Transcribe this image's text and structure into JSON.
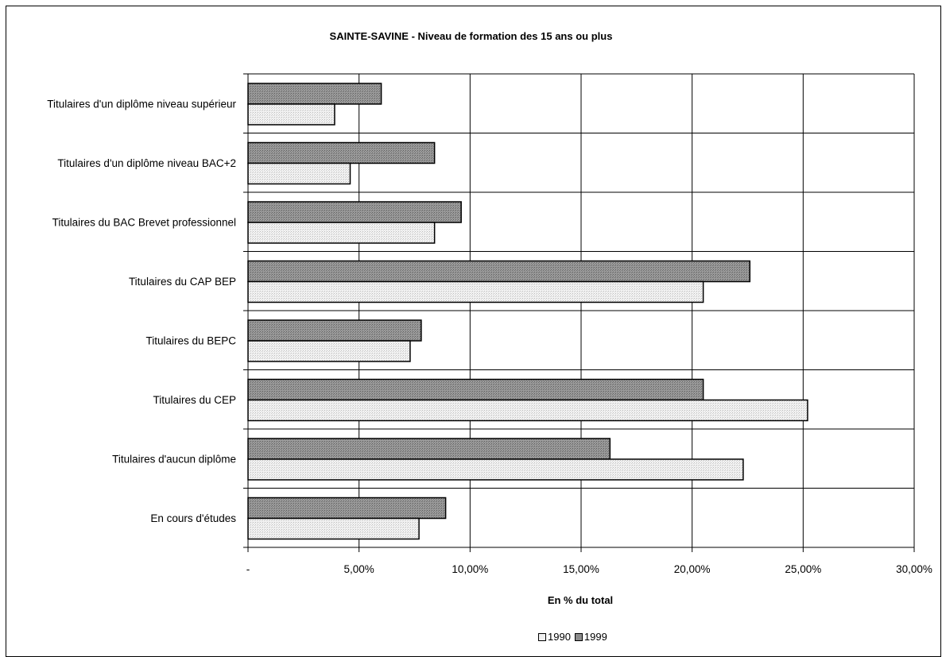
{
  "chart_data": {
    "type": "bar",
    "orientation": "horizontal",
    "title": "SAINTE-SAVINE - Niveau de formation des 15 ans ou plus",
    "xlabel": "En % du total",
    "ylabel": "",
    "xlim": [
      0,
      30
    ],
    "x_ticks": [
      "-",
      "5,00%",
      "10,00%",
      "15,00%",
      "20,00%",
      "25,00%",
      "30,00%"
    ],
    "grid": true,
    "legend_position": "bottom",
    "categories": [
      "Titulaires d'un diplôme niveau supérieur",
      "Titulaires d'un diplôme niveau BAC+2",
      "Titulaires du BAC Brevet professionnel",
      "Titulaires du CAP BEP",
      "Titulaires du BEPC",
      "Titulaires du CEP",
      "Titulaires d'aucun diplôme",
      "En cours d'études"
    ],
    "series": [
      {
        "name": "1990",
        "color": "#e4e4e4",
        "values": [
          3.9,
          4.6,
          8.4,
          20.5,
          7.3,
          25.2,
          22.3,
          7.7
        ]
      },
      {
        "name": "1999",
        "color": "#8c8c8c",
        "values": [
          6.0,
          8.4,
          9.6,
          22.6,
          7.8,
          20.5,
          16.3,
          8.9
        ]
      }
    ]
  }
}
